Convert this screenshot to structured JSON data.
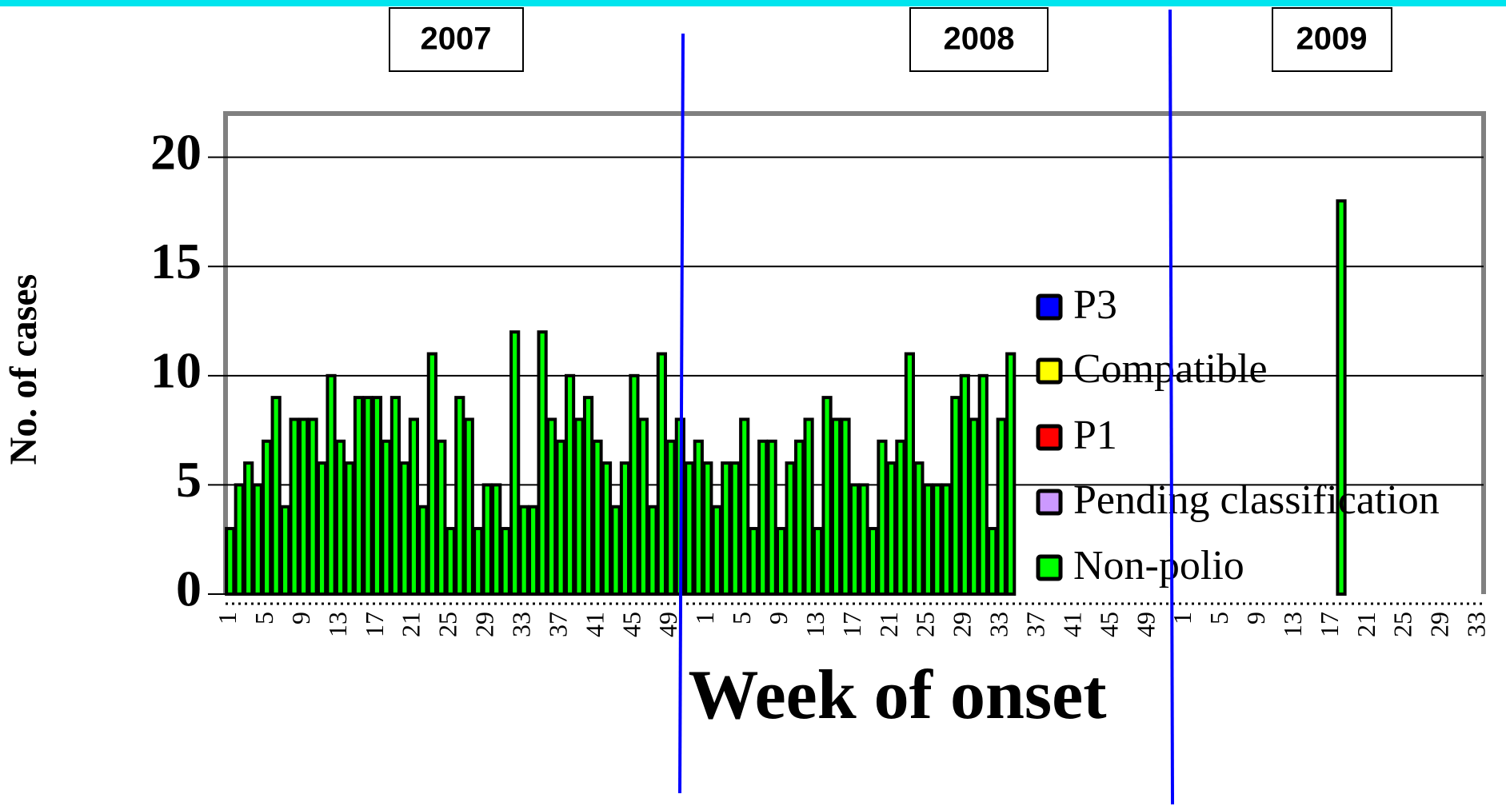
{
  "chart_data": {
    "type": "stacked_bar",
    "y_label": "No. of cases",
    "x_label": "Week of onset",
    "annotations": [
      "2007",
      "2008",
      "2009"
    ],
    "ylim": [
      0,
      22
    ],
    "yticks": [
      0,
      5,
      10,
      15,
      20
    ],
    "grid": true,
    "legend": "right",
    "categories": [
      "1",
      null,
      null,
      null,
      "5",
      null,
      null,
      null,
      "9",
      null,
      null,
      null,
      "13",
      null,
      null,
      null,
      "17",
      null,
      null,
      null,
      "21",
      null,
      null,
      null,
      "25",
      null,
      null,
      null,
      "29",
      null,
      null,
      null,
      "33",
      null,
      null,
      null,
      "37",
      null,
      null,
      null,
      "41",
      null,
      null,
      null,
      "45",
      null,
      null,
      null,
      "49",
      null,
      null,
      null,
      "1",
      null,
      null,
      null,
      "5",
      null,
      null,
      null,
      "9",
      null,
      null,
      null,
      "13",
      null,
      null,
      null,
      "17",
      null,
      null,
      null,
      "21",
      null,
      null,
      null,
      "25",
      null,
      null,
      null,
      "29",
      null,
      null,
      null,
      "33",
      null,
      null,
      null,
      "37",
      null,
      null,
      null,
      "41",
      null,
      null,
      null,
      "45",
      null,
      null,
      null,
      "49",
      null,
      null,
      null,
      "1",
      null,
      null,
      null,
      "5",
      null,
      null,
      null,
      "9",
      null,
      null,
      null,
      "13",
      null,
      null,
      null,
      "17",
      null,
      null,
      null,
      "21",
      null,
      null,
      null,
      "25",
      null,
      null,
      null,
      "29",
      null,
      null,
      null,
      "33"
    ],
    "series": [
      {
        "name": "P3",
        "color": "#0000ff",
        "values": [
          null,
          null,
          null,
          null,
          null,
          null,
          null,
          null,
          null,
          null,
          null,
          null,
          null,
          null,
          null,
          null,
          null,
          null,
          null,
          null,
          null,
          null,
          null,
          null,
          null,
          null,
          null,
          null,
          null,
          null,
          null,
          null,
          null,
          null,
          null,
          null,
          null,
          null,
          null,
          null,
          null,
          null,
          null,
          null,
          null,
          null,
          null,
          null,
          null,
          null,
          null,
          null,
          null,
          null,
          null,
          null,
          null,
          null,
          null,
          null,
          null,
          null,
          null,
          null,
          null,
          null,
          null,
          null,
          null,
          null,
          null,
          null,
          null,
          null,
          null,
          null,
          null,
          null,
          null,
          null,
          null,
          null,
          null,
          null,
          null,
          null,
          null,
          null,
          null,
          null,
          null,
          null,
          null,
          null,
          null,
          null,
          null,
          null,
          null,
          null,
          null,
          null,
          null,
          null,
          null,
          null,
          null,
          null,
          null,
          null,
          null,
          null,
          null,
          null,
          null,
          null,
          null,
          null,
          null,
          null,
          null,
          null,
          null,
          null,
          null,
          null,
          null,
          null,
          null,
          null,
          null,
          null,
          null,
          null,
          null,
          null,
          null
        ]
      },
      {
        "name": "Compatible",
        "color": "#ffff00",
        "values": [
          null,
          null,
          null,
          null,
          null,
          null,
          null,
          null,
          null,
          null,
          null,
          null,
          null,
          null,
          null,
          null,
          null,
          null,
          null,
          null,
          null,
          null,
          null,
          null,
          null,
          null,
          null,
          null,
          null,
          null,
          null,
          null,
          null,
          null,
          null,
          null,
          null,
          null,
          null,
          null,
          null,
          null,
          null,
          null,
          null,
          null,
          null,
          null,
          null,
          null,
          null,
          null,
          null,
          null,
          null,
          null,
          null,
          null,
          null,
          null,
          null,
          null,
          null,
          null,
          null,
          null,
          null,
          null,
          null,
          null,
          null,
          null,
          null,
          null,
          null,
          null,
          null,
          null,
          null,
          null,
          null,
          null,
          null,
          null,
          null,
          null,
          null,
          null,
          null,
          null,
          null,
          null,
          null,
          null,
          null,
          null,
          null,
          null,
          null,
          null,
          null,
          null,
          null,
          null,
          null,
          null,
          null,
          null,
          null,
          null,
          null,
          null,
          null,
          null,
          null,
          null,
          null,
          null,
          null,
          null,
          null,
          null,
          null,
          null,
          null,
          null,
          null,
          null,
          null,
          null,
          null,
          null,
          null,
          null,
          null,
          null,
          null
        ]
      },
      {
        "name": "P1",
        "color": "#ff0000",
        "values": [
          null,
          null,
          null,
          null,
          null,
          null,
          null,
          null,
          null,
          null,
          null,
          null,
          null,
          null,
          null,
          null,
          null,
          null,
          null,
          null,
          null,
          null,
          null,
          null,
          null,
          null,
          null,
          null,
          null,
          null,
          null,
          null,
          null,
          null,
          null,
          null,
          null,
          null,
          null,
          null,
          null,
          null,
          null,
          null,
          null,
          null,
          null,
          null,
          null,
          null,
          null,
          null,
          null,
          null,
          null,
          null,
          null,
          null,
          null,
          null,
          null,
          null,
          null,
          null,
          null,
          null,
          null,
          null,
          null,
          null,
          null,
          null,
          null,
          null,
          null,
          null,
          null,
          null,
          null,
          null,
          null,
          null,
          null,
          null,
          null,
          null,
          null,
          null,
          null,
          null,
          null,
          null,
          null,
          null,
          null,
          null,
          null,
          null,
          null,
          null,
          null,
          null,
          null,
          null,
          null,
          null,
          null,
          null,
          null,
          null,
          null,
          null,
          null,
          null,
          null,
          null,
          null,
          null,
          null,
          null,
          null,
          null,
          null,
          null,
          null,
          null,
          null,
          null,
          null,
          null,
          null,
          null,
          null,
          null,
          null,
          null,
          null
        ]
      },
      {
        "name": "Pending classification",
        "color": "#cc99ff",
        "values": [
          null,
          null,
          null,
          null,
          null,
          null,
          null,
          null,
          null,
          null,
          null,
          null,
          null,
          null,
          null,
          null,
          null,
          null,
          null,
          null,
          null,
          null,
          null,
          null,
          null,
          null,
          null,
          null,
          null,
          null,
          null,
          null,
          null,
          null,
          null,
          null,
          null,
          null,
          null,
          null,
          null,
          null,
          null,
          null,
          null,
          null,
          null,
          null,
          null,
          null,
          null,
          null,
          null,
          null,
          null,
          null,
          null,
          null,
          null,
          null,
          null,
          null,
          null,
          null,
          null,
          null,
          null,
          null,
          null,
          null,
          null,
          null,
          null,
          null,
          null,
          null,
          null,
          null,
          null,
          null,
          null,
          null,
          null,
          null,
          null,
          null,
          null,
          null,
          null,
          null,
          null,
          null,
          null,
          null,
          null,
          null,
          null,
          null,
          null,
          null,
          null,
          null,
          null,
          null,
          null,
          null,
          null,
          null,
          null,
          null,
          null,
          null,
          null,
          null,
          null,
          null,
          null,
          null,
          null,
          null,
          null,
          null,
          null,
          null,
          null,
          null,
          null,
          null,
          null,
          null,
          null,
          null,
          null,
          null,
          null,
          null,
          null
        ]
      },
      {
        "name": "Non-polio",
        "color": "#00ff00",
        "values": [
          3,
          5,
          6,
          5,
          7,
          9,
          4,
          8,
          8,
          8,
          6,
          10,
          7,
          6,
          9,
          9,
          9,
          7,
          9,
          6,
          8,
          4,
          11,
          7,
          3,
          9,
          8,
          3,
          5,
          5,
          3,
          12,
          4,
          4,
          12,
          8,
          7,
          10,
          8,
          9,
          7,
          6,
          4,
          6,
          10,
          8,
          4,
          11,
          7,
          8,
          6,
          7,
          6,
          4,
          6,
          6,
          8,
          3,
          7,
          7,
          3,
          6,
          7,
          8,
          3,
          9,
          8,
          8,
          5,
          5,
          3,
          7,
          6,
          7,
          11,
          6,
          5,
          5,
          5,
          9,
          10,
          8,
          10,
          3,
          8,
          11,
          null,
          null,
          null,
          null,
          null,
          null,
          null,
          null,
          null,
          null,
          null,
          null,
          null,
          null,
          null,
          null,
          null,
          null,
          null,
          null,
          null,
          null,
          null,
          null,
          null,
          null,
          null,
          null,
          null,
          null,
          null,
          null,
          null,
          null,
          null,
          18,
          null,
          null,
          null,
          null,
          null,
          null,
          null,
          null,
          null,
          null,
          null,
          null,
          null,
          null,
          null
        ]
      }
    ]
  }
}
